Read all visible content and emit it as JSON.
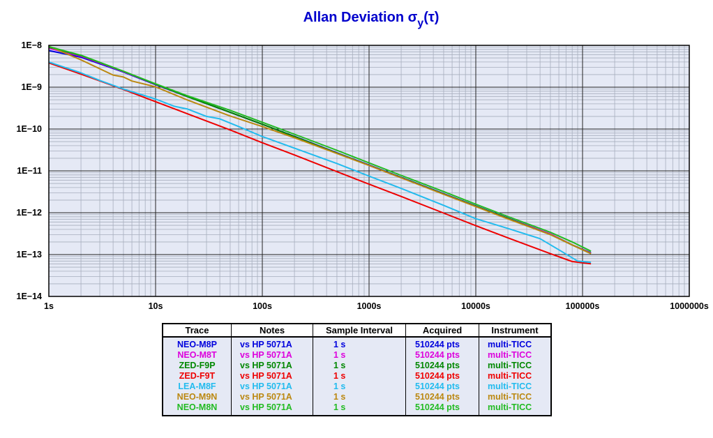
{
  "title": {
    "main": "Allan Deviation σ",
    "sub": "y",
    "tail": "(τ)"
  },
  "chart_data": {
    "type": "line",
    "title": "Allan Deviation σy(τ)",
    "xscale": "log",
    "yscale": "log",
    "xlim": [
      1,
      1000000
    ],
    "ylim": [
      1e-14,
      1e-08
    ],
    "xticks": [
      "1s",
      "10s",
      "100s",
      "1000s",
      "10000s",
      "100000s",
      "1000000s"
    ],
    "yticks": [
      "1E−8",
      "1E−9",
      "1E−10",
      "1E−11",
      "1E−12",
      "1E−13",
      "1E−14"
    ],
    "grid": true,
    "plot_background": "#e5e9f5",
    "series": [
      {
        "name": "NEO-M8P",
        "color": "#0000dd",
        "points": [
          [
            1,
            7.5e-09
          ],
          [
            2,
            5.2e-09
          ],
          [
            5,
            2.3e-09
          ],
          [
            10,
            1.15e-09
          ],
          [
            20,
            5.9e-10
          ],
          [
            50,
            2.5e-10
          ],
          [
            100,
            1.3e-10
          ],
          [
            200,
            6.7e-11
          ],
          [
            500,
            2.7e-11
          ],
          [
            1000,
            1.38e-11
          ],
          [
            2000,
            7e-12
          ],
          [
            5000,
            2.85e-12
          ],
          [
            10000,
            1.45e-12
          ],
          [
            20000,
            7.4e-13
          ],
          [
            50000,
            3.1e-13
          ],
          [
            80000,
            1.7e-13
          ],
          [
            120000,
            1.1e-13
          ]
        ]
      },
      {
        "name": "NEO-M8T",
        "color": "#dd00dd",
        "points": [
          [
            1,
            8.5e-09
          ],
          [
            2,
            5.5e-09
          ],
          [
            5,
            2.35e-09
          ],
          [
            10,
            1.17e-09
          ],
          [
            20,
            5.9e-10
          ],
          [
            50,
            2.5e-10
          ],
          [
            100,
            1.3e-10
          ],
          [
            200,
            6.6e-11
          ],
          [
            500,
            2.65e-11
          ],
          [
            1000,
            1.35e-11
          ],
          [
            2000,
            6.8e-12
          ],
          [
            5000,
            2.8e-12
          ],
          [
            10000,
            1.42e-12
          ],
          [
            20000,
            7.3e-13
          ],
          [
            50000,
            3.1e-13
          ],
          [
            80000,
            1.7e-13
          ],
          [
            120000,
            1.07e-13
          ]
        ]
      },
      {
        "name": "ZED-F9P",
        "color": "#008800",
        "points": [
          [
            1,
            9e-09
          ],
          [
            2,
            5.7e-09
          ],
          [
            5,
            2.4e-09
          ],
          [
            10,
            1.18e-09
          ],
          [
            20,
            5.9e-10
          ],
          [
            50,
            2.5e-10
          ],
          [
            100,
            1.3e-10
          ],
          [
            200,
            6.6e-11
          ],
          [
            500,
            2.65e-11
          ],
          [
            1000,
            1.36e-11
          ],
          [
            2000,
            6.9e-12
          ],
          [
            5000,
            2.8e-12
          ],
          [
            10000,
            1.43e-12
          ],
          [
            20000,
            7.3e-13
          ],
          [
            50000,
            3e-13
          ],
          [
            80000,
            1.7e-13
          ],
          [
            120000,
            1.05e-13
          ]
        ]
      },
      {
        "name": "ZED-F9T",
        "color": "#ee0000",
        "points": [
          [
            1,
            3.8e-09
          ],
          [
            2,
            2.05e-09
          ],
          [
            5,
            8.8e-10
          ],
          [
            10,
            4.5e-10
          ],
          [
            20,
            2.3e-10
          ],
          [
            50,
            9.5e-11
          ],
          [
            100,
            4.7e-11
          ],
          [
            200,
            2.4e-11
          ],
          [
            500,
            9.6e-12
          ],
          [
            1000,
            4.8e-12
          ],
          [
            2000,
            2.45e-12
          ],
          [
            5000,
            9.8e-13
          ],
          [
            10000,
            4.9e-13
          ],
          [
            20000,
            2.5e-13
          ],
          [
            50000,
            1.05e-13
          ],
          [
            80000,
            6.8e-14
          ],
          [
            120000,
            6e-14
          ]
        ]
      },
      {
        "name": "LEA-M8F",
        "color": "#22bbee",
        "points": [
          [
            1,
            4e-09
          ],
          [
            2,
            2.2e-09
          ],
          [
            3,
            1.45e-09
          ],
          [
            5,
            9e-10
          ],
          [
            10,
            5.2e-10
          ],
          [
            15,
            3.5e-10
          ],
          [
            20,
            3e-10
          ],
          [
            30,
            2e-10
          ],
          [
            40,
            1.75e-10
          ],
          [
            60,
            1.15e-10
          ],
          [
            100,
            6.6e-11
          ],
          [
            200,
            3.5e-11
          ],
          [
            500,
            1.5e-11
          ],
          [
            1000,
            7.5e-12
          ],
          [
            2000,
            3.8e-12
          ],
          [
            5000,
            1.5e-12
          ],
          [
            10000,
            7.2e-13
          ],
          [
            20000,
            4.2e-13
          ],
          [
            40000,
            2.4e-13
          ],
          [
            60000,
            1.3e-13
          ],
          [
            90000,
            7e-14
          ],
          [
            120000,
            6.5e-14
          ]
        ]
      },
      {
        "name": "NEO-M9N",
        "color": "#bb8811",
        "points": [
          [
            1,
            9.5e-09
          ],
          [
            2,
            4.5e-09
          ],
          [
            4,
            1.95e-09
          ],
          [
            5,
            1.75e-09
          ],
          [
            6,
            1.4e-09
          ],
          [
            10,
            1.02e-09
          ],
          [
            20,
            4.9e-10
          ],
          [
            50,
            2.05e-10
          ],
          [
            100,
            1.15e-10
          ],
          [
            200,
            6.2e-11
          ],
          [
            500,
            2.6e-11
          ],
          [
            1000,
            1.35e-11
          ],
          [
            2000,
            6.8e-12
          ],
          [
            5000,
            2.75e-12
          ],
          [
            10000,
            1.4e-12
          ],
          [
            20000,
            7.1e-13
          ],
          [
            50000,
            3e-13
          ],
          [
            80000,
            1.7e-13
          ],
          [
            120000,
            1.05e-13
          ]
        ]
      },
      {
        "name": "NEO-M8N",
        "color": "#22bb22",
        "points": [
          [
            1,
            9.3e-09
          ],
          [
            2,
            5.8e-09
          ],
          [
            5,
            2.4e-09
          ],
          [
            10,
            1.2e-09
          ],
          [
            20,
            6.2e-10
          ],
          [
            50,
            2.8e-10
          ],
          [
            100,
            1.45e-10
          ],
          [
            200,
            7.5e-11
          ],
          [
            500,
            3.1e-11
          ],
          [
            1000,
            1.55e-11
          ],
          [
            2000,
            7.8e-12
          ],
          [
            5000,
            3.2e-12
          ],
          [
            10000,
            1.6e-12
          ],
          [
            20000,
            8.1e-13
          ],
          [
            50000,
            3.4e-13
          ],
          [
            80000,
            2e-13
          ],
          [
            120000,
            1.2e-13
          ]
        ]
      }
    ]
  },
  "legend_table": {
    "headers": [
      "Trace",
      "Notes",
      "Sample Interval",
      "Acquired",
      "Instrument"
    ],
    "rows": [
      {
        "trace": "NEO-M8P",
        "notes": "vs HP 5071A",
        "interval": "1 s",
        "acquired": "510244 pts",
        "instrument": "multi-TICC",
        "color": "#0000dd"
      },
      {
        "trace": "NEO-M8T",
        "notes": "vs HP 5071A",
        "interval": "1 s",
        "acquired": "510244 pts",
        "instrument": "multi-TICC",
        "color": "#dd00dd"
      },
      {
        "trace": "ZED-F9P",
        "notes": "vs HP 5071A",
        "interval": "1 s",
        "acquired": "510244 pts",
        "instrument": "multi-TICC",
        "color": "#008800"
      },
      {
        "trace": "ZED-F9T",
        "notes": "vs HP 5071A",
        "interval": "1 s",
        "acquired": "510244 pts",
        "instrument": "multi-TICC",
        "color": "#ee0000"
      },
      {
        "trace": "LEA-M8F",
        "notes": "vs HP 5071A",
        "interval": "1 s",
        "acquired": "510244 pts",
        "instrument": "multi-TICC",
        "color": "#22bbee"
      },
      {
        "trace": "NEO-M9N",
        "notes": "vs HP 5071A",
        "interval": "1 s",
        "acquired": "510244 pts",
        "instrument": "multi-TICC",
        "color": "#bb8811"
      },
      {
        "trace": "NEO-M8N",
        "notes": "vs HP 5071A",
        "interval": "1 s",
        "acquired": "510244 pts",
        "instrument": "multi-TICC",
        "color": "#22bb22"
      }
    ]
  }
}
